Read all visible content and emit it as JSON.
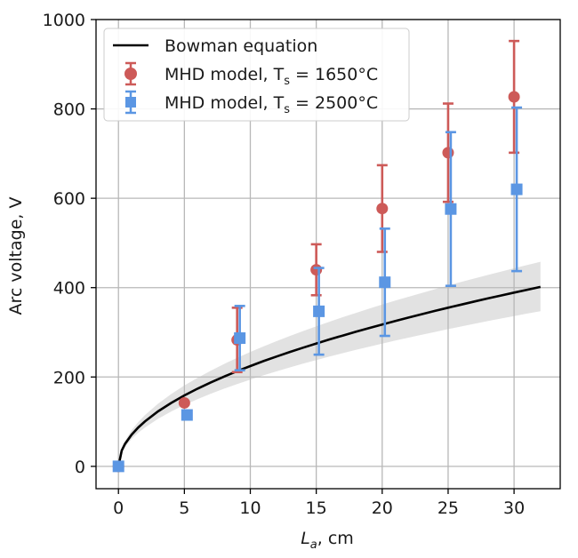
{
  "chart_data": {
    "type": "scatter",
    "title": "",
    "xlabel": "L",
    "xlabel_subscript": "a",
    "xlabel_unit": ", cm",
    "ylabel": "Arc voltage, V",
    "xlim": [
      -1.7,
      33.5
    ],
    "ylim": [
      -50,
      1000
    ],
    "xticks": [
      0,
      5,
      10,
      15,
      20,
      25,
      30
    ],
    "yticks": [
      0,
      200,
      400,
      600,
      800,
      1000
    ],
    "grid": true,
    "legend_position": "top-left",
    "series": [
      {
        "name": "Bowman equation",
        "kind": "line",
        "color": "#000000",
        "function": "V = 71 * L^0.5",
        "x": [
          0,
          0.25,
          0.5,
          1,
          1.5,
          2,
          3,
          4,
          5,
          6,
          7,
          8,
          9,
          10,
          11,
          12,
          13,
          14,
          15,
          16,
          17,
          18,
          19,
          20,
          21,
          22,
          23,
          24,
          25,
          26,
          27,
          28,
          29,
          30,
          31,
          32
        ],
        "band_color": "#d3d3d3",
        "band_lower_factor": 0.865,
        "band_upper_factor": 1.14
      },
      {
        "name": "MHD model, T",
        "subscript": "s",
        "label_suffix": " = 1650°C",
        "kind": "errorbar",
        "marker": "circle",
        "color": "#cd5a58",
        "x": [
          0,
          5,
          9,
          15,
          20,
          25,
          30
        ],
        "y": [
          0,
          142,
          283,
          440,
          577,
          702,
          827
        ],
        "yerr_lower": [
          0,
          0,
          72,
          57,
          97,
          110,
          125
        ],
        "yerr_upper": [
          0,
          0,
          72,
          57,
          97,
          110,
          125
        ]
      },
      {
        "name": "MHD model, T",
        "subscript": "s",
        "label_suffix": " = 2500°C",
        "kind": "errorbar",
        "marker": "square",
        "color": "#5b96e3",
        "x": [
          0,
          5,
          9,
          15,
          20,
          25,
          30
        ],
        "y": [
          0,
          115,
          287,
          347,
          412,
          576,
          620
        ],
        "yerr_lower": [
          0,
          0,
          72,
          97,
          120,
          172,
          183
        ],
        "yerr_upper": [
          0,
          0,
          72,
          97,
          120,
          172,
          183
        ]
      }
    ]
  }
}
